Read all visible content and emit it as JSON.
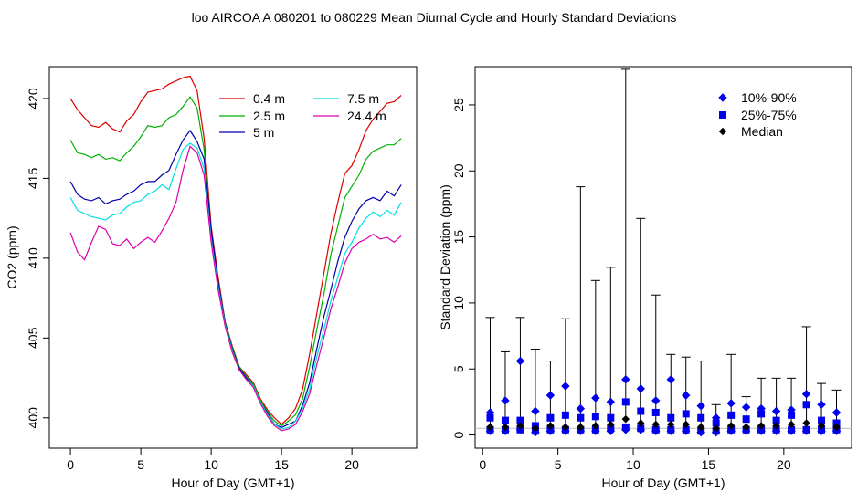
{
  "title": "loo   AIRCOA A   080201 to 080229   Mean Diurnal Cycle and Hourly Standard Deviations",
  "chart_data": [
    {
      "type": "line",
      "xlabel": "Hour of Day (GMT+1)",
      "ylabel": "CO2 (ppm)",
      "xlim": [
        -1.5,
        24.6
      ],
      "ylim": [
        398.1,
        422.0
      ],
      "xticks": [
        0,
        5,
        10,
        15,
        20
      ],
      "yticks": [
        400,
        405,
        410,
        415,
        420
      ],
      "legend_position": "top-right",
      "x": [
        0,
        0.5,
        1,
        1.5,
        2,
        2.5,
        3,
        3.5,
        4,
        4.5,
        5,
        5.5,
        6,
        6.5,
        7,
        7.5,
        8,
        8.5,
        9,
        9.5,
        10,
        10.5,
        11,
        11.5,
        12,
        12.5,
        13,
        13.5,
        14,
        14.5,
        15,
        15.5,
        16,
        16.5,
        17,
        17.5,
        18,
        18.5,
        19,
        19.5,
        20,
        20.5,
        21,
        21.5,
        22,
        22.5,
        23,
        23.5
      ],
      "series": [
        {
          "name": "0.4 m",
          "color": "#dd0000",
          "values": [
            420.0,
            419.3,
            418.8,
            418.3,
            418.2,
            418.5,
            418.1,
            417.9,
            418.6,
            419.0,
            419.8,
            420.4,
            420.5,
            420.6,
            420.9,
            421.1,
            421.3,
            421.4,
            420.5,
            417.5,
            412.0,
            408.8,
            406.0,
            404.5,
            403.2,
            402.7,
            402.2,
            401.2,
            400.5,
            400.0,
            399.6,
            400.0,
            400.6,
            401.8,
            404.0,
            406.5,
            409.0,
            411.5,
            413.5,
            415.3,
            415.8,
            416.8,
            418.0,
            418.7,
            419.2,
            419.7,
            419.8,
            420.2
          ]
        },
        {
          "name": "2.5 m",
          "color": "#00b000",
          "values": [
            417.4,
            416.6,
            416.5,
            416.3,
            416.5,
            416.2,
            416.3,
            416.1,
            416.6,
            417.0,
            417.6,
            418.3,
            418.2,
            418.3,
            418.8,
            419.0,
            419.5,
            420.1,
            419.4,
            416.8,
            411.5,
            408.5,
            406.0,
            404.4,
            403.2,
            402.6,
            402.1,
            401.1,
            400.4,
            399.8,
            399.5,
            399.8,
            400.2,
            401.2,
            403.2,
            405.5,
            407.7,
            410.2,
            412.0,
            413.8,
            414.5,
            415.2,
            416.2,
            416.7,
            416.9,
            417.1,
            417.1,
            417.5
          ]
        },
        {
          "name": "5 m",
          "color": "#0000aa",
          "values": [
            414.8,
            414.0,
            413.7,
            413.6,
            413.8,
            413.4,
            413.6,
            413.7,
            414.0,
            414.2,
            414.6,
            414.8,
            414.8,
            415.2,
            415.5,
            416.5,
            417.4,
            418.0,
            417.3,
            416.2,
            411.8,
            408.5,
            405.9,
            404.3,
            403.1,
            402.5,
            402.0,
            401.0,
            400.3,
            399.6,
            399.4,
            399.6,
            399.8,
            400.8,
            402.2,
            404.3,
            406.3,
            408.0,
            409.8,
            411.3,
            412.3,
            413.1,
            413.6,
            413.8,
            413.6,
            414.2,
            413.9,
            414.6
          ]
        },
        {
          "name": "7.5 m",
          "color": "#00e0e0",
          "values": [
            413.8,
            413.0,
            412.8,
            412.6,
            412.5,
            412.4,
            412.7,
            412.8,
            413.2,
            413.5,
            413.6,
            414.0,
            414.2,
            414.6,
            414.3,
            415.6,
            416.8,
            417.2,
            416.9,
            415.6,
            411.2,
            408.2,
            405.8,
            404.2,
            403.0,
            402.4,
            402.0,
            401.0,
            400.2,
            399.6,
            399.3,
            399.4,
            399.8,
            400.6,
            401.8,
            403.8,
            405.5,
            407.3,
            408.8,
            410.3,
            411.0,
            411.9,
            412.5,
            412.9,
            412.6,
            413.0,
            412.7,
            413.5
          ]
        },
        {
          "name": "24.4 m",
          "color": "#dd00aa",
          "values": [
            411.6,
            410.4,
            409.9,
            411.0,
            412.0,
            411.8,
            410.9,
            410.8,
            411.2,
            410.6,
            411.0,
            411.3,
            411.0,
            411.7,
            412.5,
            413.5,
            415.5,
            417.0,
            416.6,
            415.2,
            411.0,
            408.0,
            405.7,
            404.1,
            403.0,
            402.4,
            401.9,
            400.9,
            400.1,
            399.5,
            399.2,
            399.3,
            399.6,
            400.4,
            401.5,
            403.3,
            405.0,
            406.8,
            408.2,
            409.7,
            410.6,
            411.0,
            411.2,
            411.5,
            411.2,
            411.3,
            411.0,
            411.4
          ]
        }
      ]
    },
    {
      "type": "scatter",
      "xlabel": "Hour of Day (GMT+1)",
      "ylabel": "Standard Deviation (ppm)",
      "xlim": [
        -0.5,
        24.5
      ],
      "ylim": [
        -1.0,
        27.9
      ],
      "xticks": [
        0,
        5,
        10,
        15,
        20
      ],
      "yticks": [
        0,
        5,
        10,
        15,
        20,
        25
      ],
      "legend_position": "top-right",
      "x": [
        0.5,
        1.5,
        2.5,
        3.5,
        4.5,
        5.5,
        6.5,
        7.5,
        8.5,
        9.5,
        10.5,
        11.5,
        12.5,
        13.5,
        14.5,
        15.5,
        16.5,
        17.5,
        18.5,
        19.5,
        20.5,
        21.5,
        22.5,
        23.5
      ],
      "max": [
        8.9,
        6.3,
        8.9,
        6.5,
        5.6,
        8.8,
        18.8,
        11.7,
        12.7,
        27.7,
        16.4,
        10.6,
        6.1,
        5.9,
        5.6,
        2.3,
        6.1,
        2.9,
        4.3,
        4.3,
        4.3,
        8.2,
        3.9,
        3.4
      ],
      "series": [
        {
          "name": "10%-90%",
          "color": "#0000ee",
          "marker": "diamond",
          "upper": [
            1.7,
            2.6,
            5.6,
            1.8,
            3.0,
            3.7,
            2.0,
            2.8,
            2.5,
            4.2,
            3.5,
            2.6,
            4.2,
            3.0,
            2.2,
            1.3,
            2.4,
            2.1,
            2.0,
            1.8,
            1.9,
            3.1,
            2.3,
            1.7
          ],
          "lower": [
            0.3,
            0.3,
            0.4,
            0.2,
            0.3,
            0.3,
            0.3,
            0.3,
            0.3,
            0.4,
            0.4,
            0.3,
            0.3,
            0.3,
            0.2,
            0.2,
            0.3,
            0.3,
            0.3,
            0.3,
            0.3,
            0.3,
            0.3,
            0.3
          ]
        },
        {
          "name": "25%-75%",
          "color": "#0000ee",
          "marker": "square",
          "upper": [
            1.3,
            1.1,
            1.1,
            0.7,
            1.3,
            1.5,
            1.3,
            1.4,
            1.3,
            2.5,
            1.8,
            1.7,
            1.3,
            1.6,
            1.3,
            0.9,
            1.5,
            1.2,
            1.6,
            1.1,
            1.5,
            2.3,
            1.1,
            0.9
          ],
          "lower": [
            0.4,
            0.4,
            0.4,
            0.3,
            0.4,
            0.4,
            0.4,
            0.4,
            0.5,
            0.6,
            0.5,
            0.4,
            0.4,
            0.4,
            0.3,
            0.3,
            0.4,
            0.4,
            0.4,
            0.4,
            0.4,
            0.4,
            0.4,
            0.4
          ]
        },
        {
          "name": "Median",
          "color": "#000000",
          "marker": "diamond",
          "values": [
            0.6,
            0.6,
            0.7,
            0.5,
            0.7,
            0.6,
            0.6,
            0.7,
            0.8,
            1.2,
            0.9,
            0.8,
            0.8,
            0.8,
            0.6,
            0.5,
            0.7,
            0.6,
            0.7,
            0.7,
            0.8,
            0.9,
            0.7,
            0.6
          ]
        }
      ],
      "reference_line": 0.5
    }
  ]
}
